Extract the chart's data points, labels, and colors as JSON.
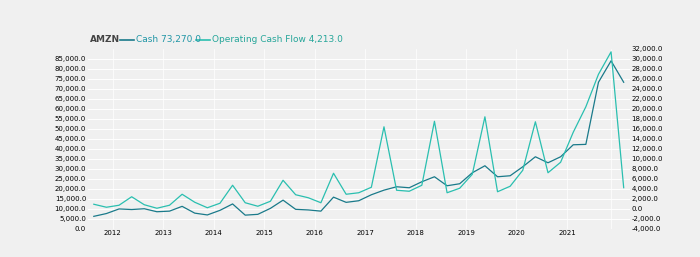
{
  "title": "AMZN",
  "legend_cash": "Cash 73,270.0",
  "legend_ocf": "Operating Cash Flow 4,213.0",
  "title_color": "#444444",
  "legend_cash_color": "#2196A6",
  "legend_ocf_color": "#26A69A",
  "cash_color": "#1a7a8a",
  "ocf_color": "#2abfb0",
  "background_color": "#f0f0f0",
  "grid_color": "#ffffff",
  "left_ylim": [
    0,
    90000
  ],
  "left_yticks": [
    0,
    5000,
    10000,
    15000,
    20000,
    25000,
    30000,
    35000,
    40000,
    45000,
    50000,
    55000,
    60000,
    65000,
    70000,
    75000,
    80000,
    85000
  ],
  "right_ylim": [
    -4000,
    32000
  ],
  "right_yticks": [
    -4000,
    -2000,
    0,
    2000,
    4000,
    6000,
    8000,
    10000,
    12000,
    14000,
    16000,
    18000,
    20000,
    22000,
    24000,
    26000,
    28000,
    30000,
    32000
  ],
  "cash": [
    6200,
    7600,
    9900,
    9600,
    10000,
    8500,
    8800,
    11200,
    7800,
    6900,
    9200,
    12400,
    6800,
    7200,
    10200,
    14300,
    9700,
    9400,
    8800,
    15800,
    13200,
    14000,
    17000,
    19300,
    21000,
    20500,
    23500,
    26000,
    21500,
    22500,
    28000,
    31500,
    26000,
    26500,
    31000,
    36000,
    33000,
    36000,
    42000,
    42200,
    73270,
    84000,
    73270
  ],
  "ocf": [
    900,
    300,
    700,
    2400,
    800,
    100,
    700,
    2900,
    1300,
    200,
    1100,
    4700,
    1200,
    500,
    1500,
    5700,
    2800,
    2200,
    1200,
    7100,
    2900,
    3200,
    4300,
    16400,
    3700,
    3500,
    4700,
    17500,
    3200,
    4100,
    6900,
    18400,
    3400,
    4500,
    7700,
    17400,
    7200,
    9300,
    15300,
    20400,
    26900,
    31400,
    4213
  ],
  "year_positions": [
    1.5,
    5.5,
    9.5,
    13.5,
    17.5,
    21.5,
    25.5,
    29.5,
    33.5,
    37.5,
    41.0
  ],
  "year_labels": [
    "2012",
    "2013",
    "2014",
    "2015",
    "2016",
    "2017",
    "2018",
    "2019",
    "2020",
    "2021",
    ""
  ],
  "line_width": 0.9,
  "font_size": 6.5
}
